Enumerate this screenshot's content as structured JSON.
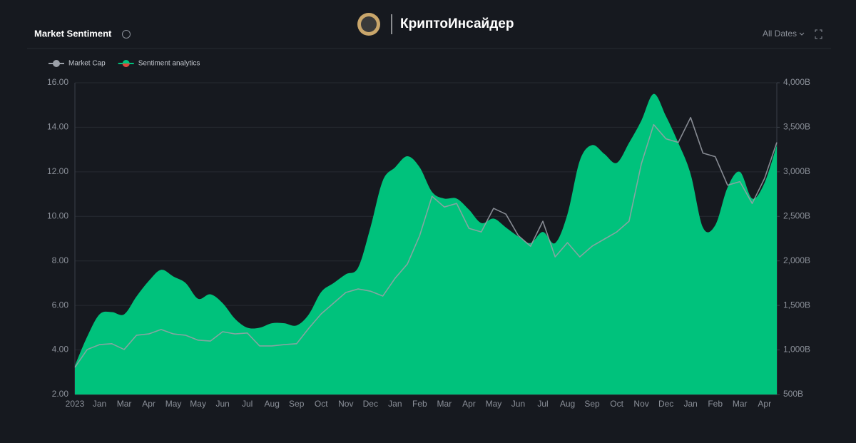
{
  "header": {
    "brand": "КриптоИнсайдер",
    "date_filter": "All Dates"
  },
  "chart_data": {
    "type": "area",
    "title": "Market Sentiment",
    "legend": "top-left",
    "grid": true,
    "categories": [
      "2023",
      null,
      "Jan",
      null,
      "Mar",
      null,
      "Apr",
      null,
      "May",
      null,
      "May",
      null,
      "Jun",
      null,
      "Jul",
      null,
      "Aug",
      null,
      "Sep",
      null,
      "Oct",
      null,
      "Nov",
      null,
      "Dec",
      null,
      "Jan",
      null,
      "Feb",
      null,
      "Mar",
      null,
      "Apr",
      null,
      "May",
      null,
      "Jun",
      null,
      "Jul",
      null,
      "Aug",
      null,
      "Sep",
      null,
      "Oct",
      null,
      "Nov",
      null,
      "Dec",
      null,
      "Jan",
      null,
      "Feb",
      null,
      "Mar",
      null,
      "Apr",
      null
    ],
    "series": [
      {
        "name": "Sentiment analytics",
        "type": "area",
        "color": "#00c27c",
        "values": [
          3.3,
          4.6,
          5.6,
          5.7,
          5.6,
          6.4,
          7.1,
          7.6,
          7.3,
          7.0,
          6.3,
          6.5,
          6.1,
          5.4,
          5.0,
          5.0,
          5.2,
          5.2,
          5.1,
          5.6,
          6.6,
          7.0,
          7.4,
          7.7,
          9.5,
          11.6,
          12.2,
          12.7,
          12.2,
          11.1,
          10.8,
          10.8,
          10.3,
          9.7,
          9.9,
          9.5,
          9.1,
          8.8,
          9.3,
          8.8,
          10.1,
          12.5,
          13.2,
          12.8,
          12.4,
          13.3,
          14.3,
          15.5,
          14.5,
          13.3,
          11.9,
          9.5,
          9.6,
          11.3,
          12.0,
          10.8,
          11.5,
          13.2
        ]
      },
      {
        "name": "Market Cap",
        "type": "line",
        "color": "#9ba0a8",
        "axis": "y2",
        "values": [
          805,
          1005,
          1060,
          1070,
          1005,
          1165,
          1180,
          1230,
          1180,
          1165,
          1110,
          1100,
          1205,
          1180,
          1190,
          1045,
          1045,
          1060,
          1070,
          1245,
          1405,
          1525,
          1645,
          1685,
          1660,
          1605,
          1805,
          1965,
          2285,
          2725,
          2605,
          2645,
          2365,
          2325,
          2590,
          2525,
          2285,
          2165,
          2445,
          2045,
          2205,
          2045,
          2165,
          2245,
          2325,
          2445,
          3090,
          3530,
          3370,
          3330,
          3610,
          3210,
          3170,
          2850,
          2890,
          2645,
          2925,
          3330
        ]
      }
    ],
    "ylim": [
      2,
      16
    ],
    "yticks": [
      {
        "value": 2,
        "label": "2.00"
      },
      {
        "value": 4,
        "label": "4.00"
      },
      {
        "value": 6,
        "label": "6.00"
      },
      {
        "value": 8,
        "label": "8.00"
      },
      {
        "value": 10,
        "label": "10.00"
      },
      {
        "value": 12,
        "label": "12.00"
      },
      {
        "value": 14,
        "label": "14.00"
      },
      {
        "value": 16,
        "label": "16.00"
      }
    ],
    "y2lim": [
      500,
      4000
    ],
    "y2ticks": [
      {
        "value": 500,
        "label": "500B"
      },
      {
        "value": 1000,
        "label": "1,000B"
      },
      {
        "value": 1500,
        "label": "1,500B"
      },
      {
        "value": 2000,
        "label": "2,000B"
      },
      {
        "value": 2500,
        "label": "2,500B"
      },
      {
        "value": 3000,
        "label": "3,000B"
      },
      {
        "value": 3500,
        "label": "3,500B"
      },
      {
        "value": 4000,
        "label": "4,000B"
      }
    ]
  }
}
